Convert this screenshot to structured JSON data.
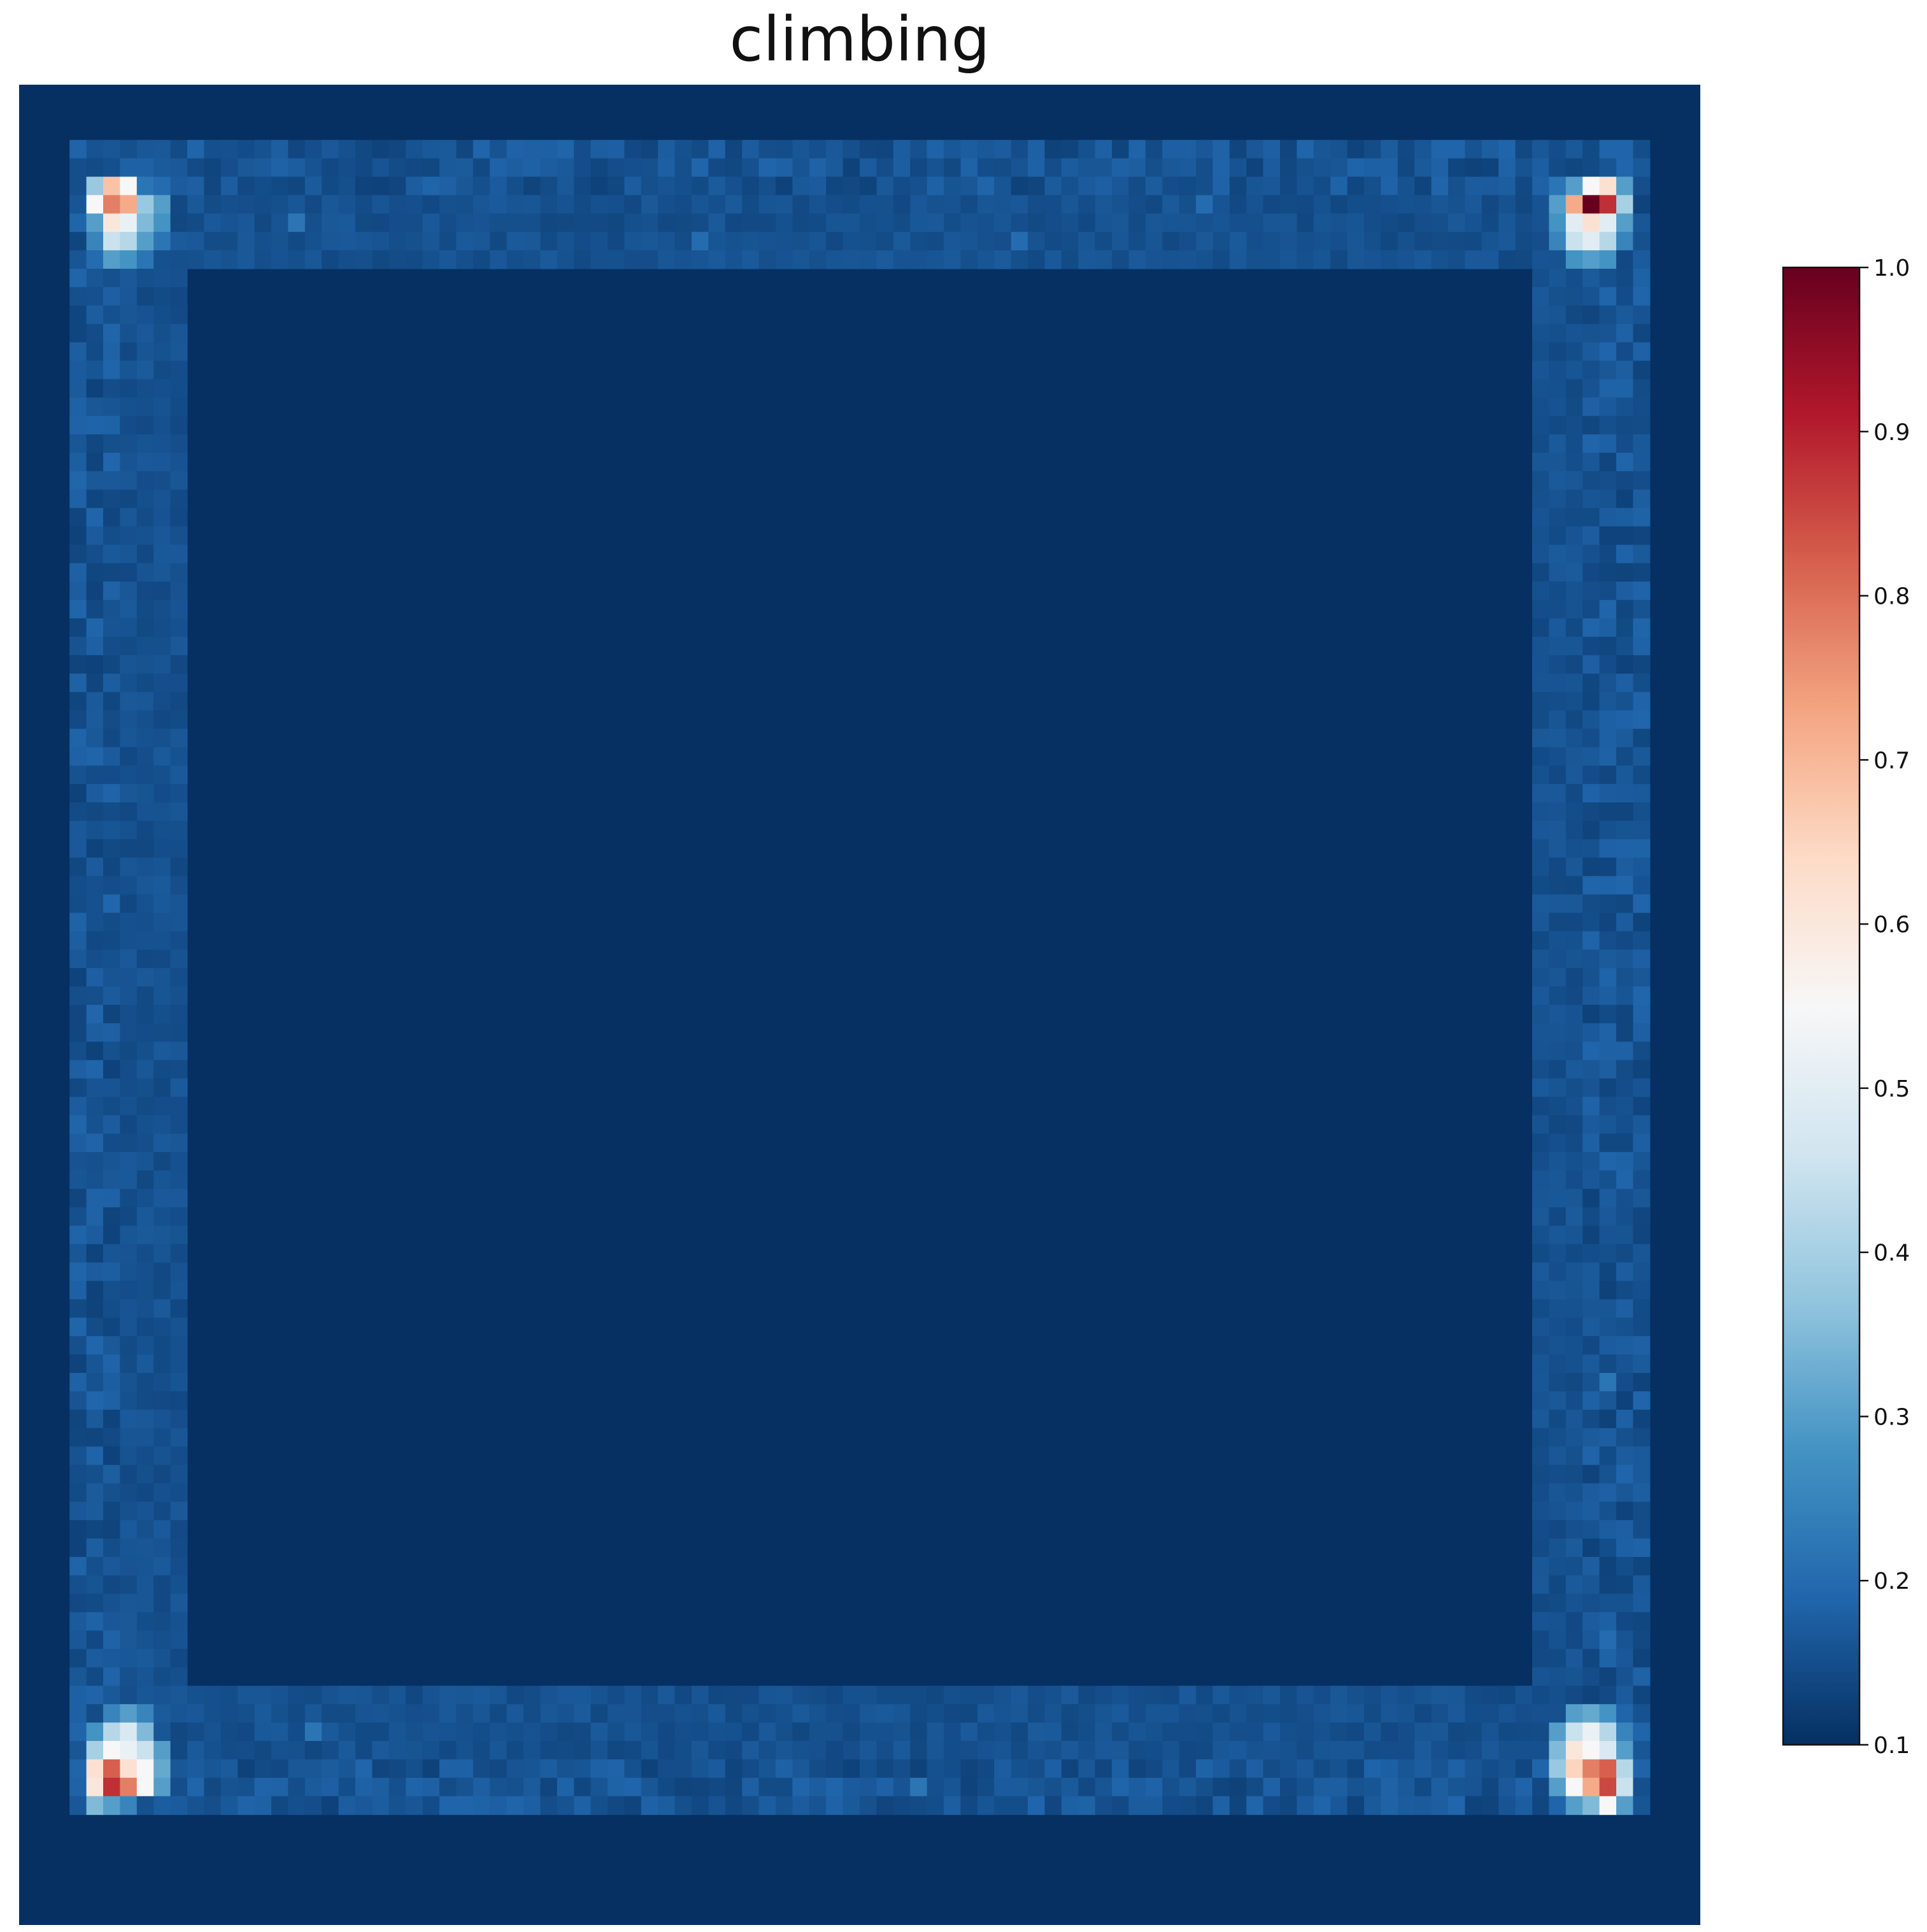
{
  "chart_data": {
    "type": "heatmap",
    "title": "climbing",
    "xlabel": "",
    "ylabel": "",
    "grid": false,
    "axes_visible": false,
    "colormap": "RdBu_r",
    "value_range": [
      0.1,
      1.0
    ],
    "grid_size": {
      "rows": 100,
      "cols": 100
    },
    "background_value": 0.1,
    "inner_border_value": 0.15,
    "colorbar": {
      "ticks": [
        1.0,
        0.9,
        0.8,
        0.7,
        0.6,
        0.5,
        0.4,
        0.3,
        0.2,
        0.1
      ],
      "tick_labels": [
        "1.0",
        "0.9",
        "0.8",
        "0.7",
        "0.6",
        "0.5",
        "0.4",
        "0.3",
        "0.2",
        "0.1"
      ],
      "placement": "right"
    },
    "hotspots": [
      {
        "corner": "top-left",
        "cells": [
          {
            "row": 5,
            "col": 4,
            "value": 0.38
          },
          {
            "row": 5,
            "col": 5,
            "value": 0.68
          },
          {
            "row": 5,
            "col": 6,
            "value": 0.55
          },
          {
            "row": 5,
            "col": 7,
            "value": 0.22
          },
          {
            "row": 5,
            "col": 8,
            "value": 0.2
          },
          {
            "row": 6,
            "col": 4,
            "value": 0.55
          },
          {
            "row": 6,
            "col": 5,
            "value": 0.78
          },
          {
            "row": 6,
            "col": 6,
            "value": 0.72
          },
          {
            "row": 6,
            "col": 7,
            "value": 0.38
          },
          {
            "row": 6,
            "col": 8,
            "value": 0.3
          },
          {
            "row": 7,
            "col": 4,
            "value": 0.3
          },
          {
            "row": 7,
            "col": 5,
            "value": 0.6
          },
          {
            "row": 7,
            "col": 6,
            "value": 0.52
          },
          {
            "row": 7,
            "col": 7,
            "value": 0.35
          },
          {
            "row": 7,
            "col": 8,
            "value": 0.28
          },
          {
            "row": 8,
            "col": 4,
            "value": 0.25
          },
          {
            "row": 8,
            "col": 5,
            "value": 0.45
          },
          {
            "row": 8,
            "col": 6,
            "value": 0.42
          },
          {
            "row": 8,
            "col": 7,
            "value": 0.3
          },
          {
            "row": 8,
            "col": 8,
            "value": 0.22
          },
          {
            "row": 9,
            "col": 4,
            "value": 0.2
          },
          {
            "row": 9,
            "col": 5,
            "value": 0.3
          },
          {
            "row": 9,
            "col": 6,
            "value": 0.28
          },
          {
            "row": 9,
            "col": 7,
            "value": 0.22
          }
        ]
      },
      {
        "corner": "top-right",
        "cells": [
          {
            "row": 5,
            "col": 91,
            "value": 0.22
          },
          {
            "row": 5,
            "col": 92,
            "value": 0.3
          },
          {
            "row": 5,
            "col": 93,
            "value": 0.55
          },
          {
            "row": 5,
            "col": 94,
            "value": 0.62
          },
          {
            "row": 5,
            "col": 95,
            "value": 0.3
          },
          {
            "row": 6,
            "col": 91,
            "value": 0.3
          },
          {
            "row": 6,
            "col": 92,
            "value": 0.72
          },
          {
            "row": 6,
            "col": 93,
            "value": 1.0
          },
          {
            "row": 6,
            "col": 94,
            "value": 0.88
          },
          {
            "row": 6,
            "col": 95,
            "value": 0.4
          },
          {
            "row": 7,
            "col": 91,
            "value": 0.28
          },
          {
            "row": 7,
            "col": 92,
            "value": 0.5
          },
          {
            "row": 7,
            "col": 93,
            "value": 0.62
          },
          {
            "row": 7,
            "col": 94,
            "value": 0.5
          },
          {
            "row": 7,
            "col": 95,
            "value": 0.3
          },
          {
            "row": 8,
            "col": 91,
            "value": 0.25
          },
          {
            "row": 8,
            "col": 92,
            "value": 0.45
          },
          {
            "row": 8,
            "col": 93,
            "value": 0.5
          },
          {
            "row": 8,
            "col": 94,
            "value": 0.42
          },
          {
            "row": 8,
            "col": 95,
            "value": 0.25
          },
          {
            "row": 9,
            "col": 92,
            "value": 0.28
          },
          {
            "row": 9,
            "col": 93,
            "value": 0.3
          },
          {
            "row": 9,
            "col": 94,
            "value": 0.28
          }
        ]
      },
      {
        "corner": "bottom-left",
        "cells": [
          {
            "row": 88,
            "col": 5,
            "value": 0.25
          },
          {
            "row": 88,
            "col": 6,
            "value": 0.3
          },
          {
            "row": 88,
            "col": 7,
            "value": 0.25
          },
          {
            "row": 89,
            "col": 4,
            "value": 0.28
          },
          {
            "row": 89,
            "col": 5,
            "value": 0.42
          },
          {
            "row": 89,
            "col": 6,
            "value": 0.48
          },
          {
            "row": 89,
            "col": 7,
            "value": 0.35
          },
          {
            "row": 90,
            "col": 4,
            "value": 0.4
          },
          {
            "row": 90,
            "col": 5,
            "value": 0.55
          },
          {
            "row": 90,
            "col": 6,
            "value": 0.52
          },
          {
            "row": 90,
            "col": 7,
            "value": 0.45
          },
          {
            "row": 90,
            "col": 8,
            "value": 0.3
          },
          {
            "row": 91,
            "col": 4,
            "value": 0.62
          },
          {
            "row": 91,
            "col": 5,
            "value": 0.82
          },
          {
            "row": 91,
            "col": 6,
            "value": 0.62
          },
          {
            "row": 91,
            "col": 7,
            "value": 0.55
          },
          {
            "row": 91,
            "col": 8,
            "value": 0.32
          },
          {
            "row": 92,
            "col": 4,
            "value": 0.6
          },
          {
            "row": 92,
            "col": 5,
            "value": 0.88
          },
          {
            "row": 92,
            "col": 6,
            "value": 0.78
          },
          {
            "row": 92,
            "col": 7,
            "value": 0.55
          },
          {
            "row": 92,
            "col": 8,
            "value": 0.3
          },
          {
            "row": 93,
            "col": 4,
            "value": 0.35
          },
          {
            "row": 93,
            "col": 5,
            "value": 0.3
          },
          {
            "row": 93,
            "col": 6,
            "value": 0.25
          }
        ]
      },
      {
        "corner": "bottom-right",
        "cells": [
          {
            "row": 88,
            "col": 92,
            "value": 0.3
          },
          {
            "row": 88,
            "col": 93,
            "value": 0.32
          },
          {
            "row": 88,
            "col": 94,
            "value": 0.28
          },
          {
            "row": 89,
            "col": 91,
            "value": 0.3
          },
          {
            "row": 89,
            "col": 92,
            "value": 0.45
          },
          {
            "row": 89,
            "col": 93,
            "value": 0.52
          },
          {
            "row": 89,
            "col": 94,
            "value": 0.42
          },
          {
            "row": 89,
            "col": 95,
            "value": 0.25
          },
          {
            "row": 90,
            "col": 91,
            "value": 0.35
          },
          {
            "row": 90,
            "col": 92,
            "value": 0.6
          },
          {
            "row": 90,
            "col": 93,
            "value": 0.55
          },
          {
            "row": 90,
            "col": 94,
            "value": 0.48
          },
          {
            "row": 90,
            "col": 95,
            "value": 0.3
          },
          {
            "row": 91,
            "col": 91,
            "value": 0.38
          },
          {
            "row": 91,
            "col": 92,
            "value": 0.65
          },
          {
            "row": 91,
            "col": 93,
            "value": 0.78
          },
          {
            "row": 91,
            "col": 94,
            "value": 0.82
          },
          {
            "row": 91,
            "col": 95,
            "value": 0.42
          },
          {
            "row": 92,
            "col": 91,
            "value": 0.3
          },
          {
            "row": 92,
            "col": 92,
            "value": 0.55
          },
          {
            "row": 92,
            "col": 93,
            "value": 0.72
          },
          {
            "row": 92,
            "col": 94,
            "value": 0.85
          },
          {
            "row": 92,
            "col": 95,
            "value": 0.45
          },
          {
            "row": 93,
            "col": 92,
            "value": 0.3
          },
          {
            "row": 93,
            "col": 93,
            "value": 0.35
          },
          {
            "row": 93,
            "col": 94,
            "value": 0.55
          },
          {
            "row": 93,
            "col": 95,
            "value": 0.3
          }
        ]
      }
    ],
    "border_accents": [
      {
        "row": 7,
        "col": 16,
        "value": 0.22
      },
      {
        "row": 8,
        "col": 40,
        "value": 0.2
      },
      {
        "row": 8,
        "col": 59,
        "value": 0.2
      },
      {
        "row": 6,
        "col": 70,
        "value": 0.2
      },
      {
        "row": 92,
        "col": 53,
        "value": 0.22
      },
      {
        "row": 89,
        "col": 17,
        "value": 0.22
      },
      {
        "row": 70,
        "col": 94,
        "value": 0.22
      },
      {
        "row": 84,
        "col": 94,
        "value": 0.2
      },
      {
        "row": 35,
        "col": 94,
        "value": 0.18
      }
    ]
  }
}
